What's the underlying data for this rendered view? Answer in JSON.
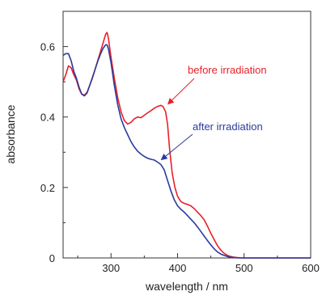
{
  "chart_data": {
    "type": "line",
    "xlabel": "wavelength / nm",
    "ylabel": "absorbance",
    "xlim": [
      228,
      600
    ],
    "ylim": [
      0,
      0.7
    ],
    "xticks": [
      300,
      400,
      500,
      600
    ],
    "yticks": [
      0,
      0.2,
      0.4,
      0.6
    ],
    "xtick_labels": [
      "300",
      "400",
      "500",
      "600"
    ],
    "ytick_labels": [
      "0",
      "0.2",
      "0.4",
      "0.6"
    ],
    "grid": false,
    "legend": "none",
    "series": [
      {
        "name": "before irradiation",
        "color": "#e8202a",
        "x": [
          228,
          232,
          236,
          240,
          244,
          248,
          252,
          256,
          260,
          264,
          268,
          272,
          276,
          280,
          284,
          288,
          292,
          294,
          296,
          300,
          305,
          310,
          315,
          320,
          325,
          330,
          335,
          340,
          345,
          350,
          355,
          360,
          365,
          370,
          375,
          378,
          382,
          385,
          388,
          392,
          396,
          400,
          405,
          410,
          415,
          420,
          425,
          430,
          435,
          440,
          445,
          450,
          455,
          460,
          465,
          470,
          475,
          480,
          485,
          490,
          500,
          510,
          520,
          540,
          560,
          580,
          600
        ],
        "y": [
          0.5,
          0.52,
          0.545,
          0.54,
          0.52,
          0.505,
          0.48,
          0.465,
          0.462,
          0.47,
          0.49,
          0.51,
          0.535,
          0.56,
          0.585,
          0.61,
          0.635,
          0.64,
          0.625,
          0.57,
          0.51,
          0.455,
          0.415,
          0.39,
          0.38,
          0.385,
          0.395,
          0.4,
          0.398,
          0.405,
          0.412,
          0.418,
          0.425,
          0.43,
          0.433,
          0.43,
          0.415,
          0.38,
          0.31,
          0.24,
          0.2,
          0.175,
          0.16,
          0.155,
          0.152,
          0.148,
          0.14,
          0.13,
          0.12,
          0.108,
          0.09,
          0.07,
          0.052,
          0.035,
          0.022,
          0.013,
          0.007,
          0.004,
          0.002,
          0.001,
          0.0,
          0.0,
          0.0,
          0.0,
          0.0,
          0.0,
          0.0
        ]
      },
      {
        "name": "after irradiation",
        "color": "#2b3a9e",
        "x": [
          228,
          232,
          236,
          240,
          244,
          248,
          252,
          256,
          260,
          264,
          268,
          272,
          276,
          280,
          284,
          288,
          292,
          294,
          296,
          300,
          305,
          310,
          315,
          320,
          325,
          330,
          335,
          340,
          345,
          350,
          355,
          360,
          365,
          370,
          375,
          380,
          385,
          390,
          395,
          400,
          405,
          410,
          415,
          420,
          425,
          430,
          435,
          440,
          445,
          450,
          455,
          460,
          465,
          470,
          475,
          480,
          485,
          490,
          500,
          510,
          520,
          540,
          560,
          580,
          600
        ],
        "y": [
          0.575,
          0.58,
          0.58,
          0.56,
          0.53,
          0.51,
          0.485,
          0.465,
          0.46,
          0.468,
          0.49,
          0.512,
          0.535,
          0.558,
          0.578,
          0.595,
          0.605,
          0.605,
          0.595,
          0.555,
          0.49,
          0.435,
          0.395,
          0.37,
          0.35,
          0.33,
          0.315,
          0.303,
          0.295,
          0.288,
          0.283,
          0.28,
          0.278,
          0.272,
          0.265,
          0.25,
          0.22,
          0.19,
          0.165,
          0.148,
          0.138,
          0.13,
          0.12,
          0.11,
          0.1,
          0.088,
          0.075,
          0.062,
          0.049,
          0.037,
          0.026,
          0.017,
          0.011,
          0.007,
          0.004,
          0.002,
          0.001,
          0.0,
          0.0,
          0.0,
          0.0,
          0.0,
          0.0,
          0.0,
          0.0
        ]
      }
    ],
    "annotations": [
      {
        "text": "before irradiation",
        "color": "#e8202a",
        "points_to": [
          382,
          0.43
        ]
      },
      {
        "text": "after irradiation",
        "color": "#2b3a9e",
        "points_to": [
          372,
          0.272
        ]
      }
    ]
  }
}
